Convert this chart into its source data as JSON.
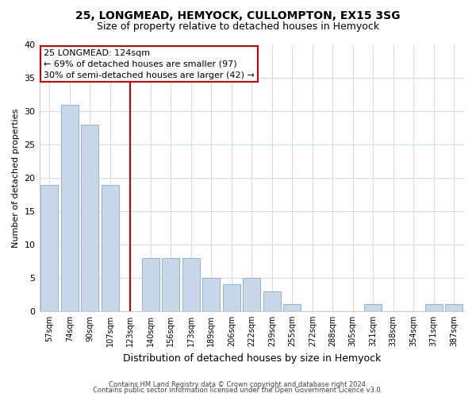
{
  "title": "25, LONGMEAD, HEMYOCK, CULLOMPTON, EX15 3SG",
  "subtitle": "Size of property relative to detached houses in Hemyock",
  "xlabel": "Distribution of detached houses by size in Hemyock",
  "ylabel": "Number of detached properties",
  "bar_labels": [
    "57sqm",
    "74sqm",
    "90sqm",
    "107sqm",
    "123sqm",
    "140sqm",
    "156sqm",
    "173sqm",
    "189sqm",
    "206sqm",
    "222sqm",
    "239sqm",
    "255sqm",
    "272sqm",
    "288sqm",
    "305sqm",
    "321sqm",
    "338sqm",
    "354sqm",
    "371sqm",
    "387sqm"
  ],
  "bar_values": [
    19,
    31,
    28,
    19,
    0,
    8,
    8,
    8,
    5,
    4,
    5,
    3,
    1,
    0,
    0,
    0,
    1,
    0,
    0,
    1,
    1
  ],
  "bar_color": "#c8d8ea",
  "bar_edge_color": "#9ab4cc",
  "highlight_line_color": "#cc0000",
  "annotation_title": "25 LONGMEAD: 124sqm",
  "annotation_line1": "← 69% of detached houses are smaller (97)",
  "annotation_line2": "30% of semi-detached houses are larger (42) →",
  "annotation_box_color": "#ffffff",
  "annotation_box_edge": "#cc0000",
  "ylim": [
    0,
    40
  ],
  "yticks": [
    0,
    5,
    10,
    15,
    20,
    25,
    30,
    35,
    40
  ],
  "footer1": "Contains HM Land Registry data © Crown copyright and database right 2024.",
  "footer2": "Contains public sector information licensed under the Open Government Licence v3.0.",
  "background_color": "#ffffff",
  "grid_color": "#d0dce8"
}
